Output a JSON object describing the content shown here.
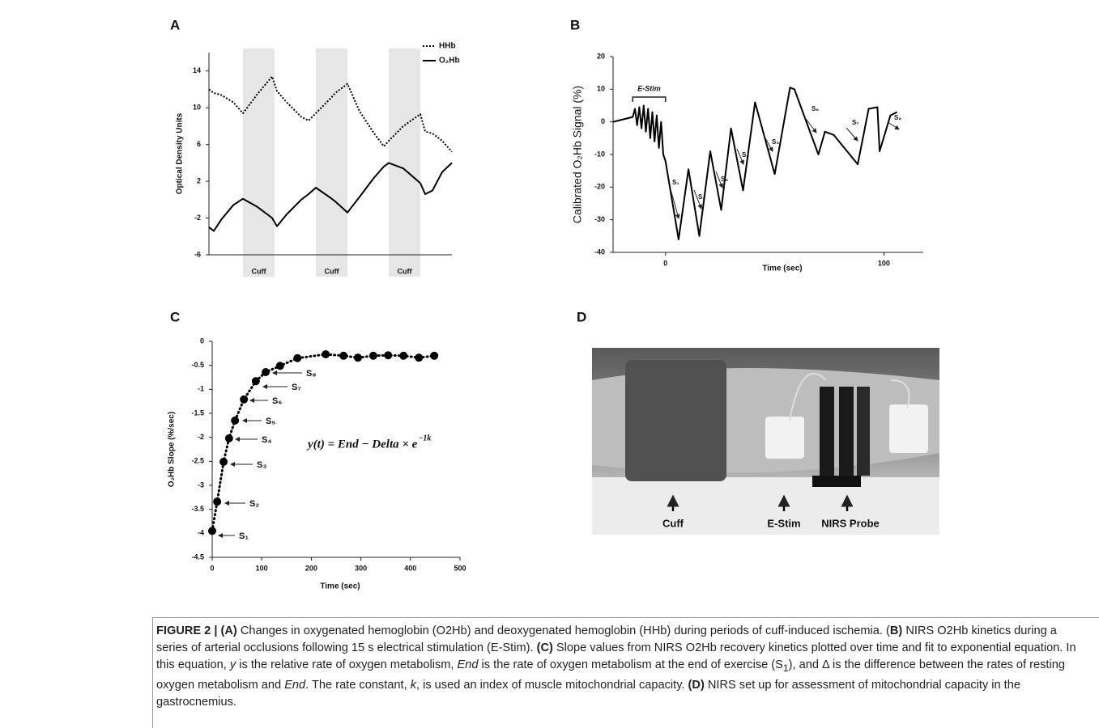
{
  "chart_data": [
    {
      "type": "line",
      "panel": "A",
      "y_label": "Optical Density Units",
      "x": [
        0,
        2,
        5,
        10,
        14,
        20,
        26,
        28,
        32,
        38,
        41,
        44,
        50,
        52,
        57,
        62,
        68,
        72,
        74,
        80,
        87,
        89,
        92,
        96,
        100
      ],
      "series": [
        {
          "name": "HHb",
          "color": "#000000",
          "dash": "dotted",
          "values": [
            12,
            11.6,
            11.4,
            10.6,
            9.4,
            11.5,
            13.4,
            11.8,
            10.6,
            9,
            8.6,
            9.4,
            11,
            11.6,
            12.6,
            9.6,
            7.2,
            5.8,
            6.4,
            8,
            9.3,
            7.4,
            7.2,
            6.4,
            5.2
          ]
        },
        {
          "name": "O₂Hb",
          "color": "#000000",
          "dash": "solid",
          "values": [
            -3,
            -3.4,
            -2.2,
            -0.6,
            0.1,
            -0.8,
            -2,
            -2.9,
            -1.6,
            0,
            0.6,
            1.3,
            0.2,
            -0.2,
            -1.4,
            0.3,
            2.4,
            3.6,
            4,
            3.4,
            1.8,
            0.6,
            1,
            3,
            4
          ]
        }
      ],
      "xlim": [
        0,
        100
      ],
      "ylim": [
        -6,
        16
      ],
      "yticks": [
        -6,
        -2,
        2,
        6,
        10,
        14
      ],
      "shaded": {
        "label": "Cuff",
        "color": "#e6e6e6",
        "ranges": [
          [
            14,
            27
          ],
          [
            44,
            57
          ],
          [
            74,
            87
          ]
        ]
      },
      "legend": "top-right"
    },
    {
      "type": "line",
      "panel": "B",
      "y_label": "Calibrated O₂Hb Signal (%)",
      "x_label": "Time (sec)",
      "x": [
        -24,
        -15,
        -14,
        -13,
        -12,
        -11,
        -10,
        -9,
        -8,
        -7,
        -6,
        -5,
        -4,
        -3,
        -2,
        -1,
        0,
        6,
        10.5,
        15.5,
        20.5,
        25.5,
        30,
        35.5,
        41,
        50,
        57,
        59,
        70,
        73,
        77,
        88,
        93,
        97,
        98,
        103,
        106
      ],
      "series": [
        {
          "color": "#000000",
          "dash": "solid",
          "values": [
            0,
            1.5,
            4,
            -1,
            4.5,
            -2,
            5,
            -3,
            4,
            -5,
            3,
            -6,
            2,
            -8,
            0,
            -10,
            -12,
            -36,
            -14.5,
            -35,
            -9,
            -27,
            -2,
            -21,
            6,
            -16,
            10.5,
            10,
            -10,
            -3,
            -4,
            -13,
            4,
            4.5,
            -9,
            2,
            3
          ]
        }
      ],
      "xlim": [
        -24,
        118
      ],
      "xticks": [
        0,
        100
      ],
      "ylim": [
        -40,
        20
      ],
      "yticks": [
        -40,
        -30,
        -20,
        -10,
        0,
        10,
        20
      ],
      "annotation": {
        "text": "E-Stim",
        "range": [
          -15,
          0
        ]
      },
      "labels": [
        "S₁",
        "S₂",
        "S₃",
        "S₄",
        "S₅",
        "S₆",
        "S₇",
        "S₈"
      ]
    },
    {
      "type": "scatter",
      "panel": "C",
      "y_label": "O₂Hb Slope (%/sec)",
      "x_label": "Time (sec)",
      "x": [
        0,
        10,
        23,
        34,
        46,
        64,
        88,
        108,
        137,
        172,
        229,
        265,
        294,
        325,
        355,
        386,
        417,
        448
      ],
      "values": [
        -3.95,
        -3.34,
        -2.51,
        -2.02,
        -1.65,
        -1.21,
        -0.83,
        -0.64,
        -0.51,
        -0.35,
        -0.27,
        -0.3,
        -0.34,
        -0.3,
        -0.29,
        -0.3,
        -0.34,
        -0.3
      ],
      "color": "#000000",
      "xlim": [
        0,
        500
      ],
      "xticks": [
        0,
        100,
        200,
        300,
        400,
        500
      ],
      "ylim": [
        -4.5,
        0
      ],
      "yticks": [
        0,
        -0.5,
        -1,
        -1.5,
        -2,
        -2.5,
        -3,
        -3.5,
        -4,
        -4.5
      ],
      "labels": [
        "S₁",
        "S₂",
        "S₃",
        "S₄",
        "S₅",
        "S₆",
        "S₇",
        "S₈"
      ],
      "equation": {
        "text": "y(t) = End − Delta × e",
        "exponent": "−1k"
      }
    }
  ],
  "photo": {
    "panel": "D",
    "labels": [
      "Cuff",
      "E-Stim",
      "NIRS Probe"
    ]
  },
  "caption": [
    "FIGURE 2 | (A)",
    " Changes in oxygenated hemoglobin (O2Hb) and deoxygenated hemoglobin (HHb) during periods of cuff-induced ischemia. (",
    "B)",
    " NIRS O2Hb kinetics during a series of arterial occlusions following 15 s electrical stimulation (E-Stim). ",
    "(C)",
    " Slope values from NIRS O2Hb recovery kinetics plotted over time and fit to exponential equation. In this equation, ",
    "y",
    " is the relative rate of oxygen metabolism, ",
    "End",
    " is the rate of oxygen metabolism at the end of exercise (S",
    "1",
    "), and Δ is the difference between the rates of resting oxygen metabolism and ",
    "End",
    ". The rate constant, ",
    "k",
    ", is used an index of muscle mitochondrial capacity. ",
    "(D)",
    " NIRS set up for assessment of mitochondrial capacity in the gastrocnemius."
  ]
}
